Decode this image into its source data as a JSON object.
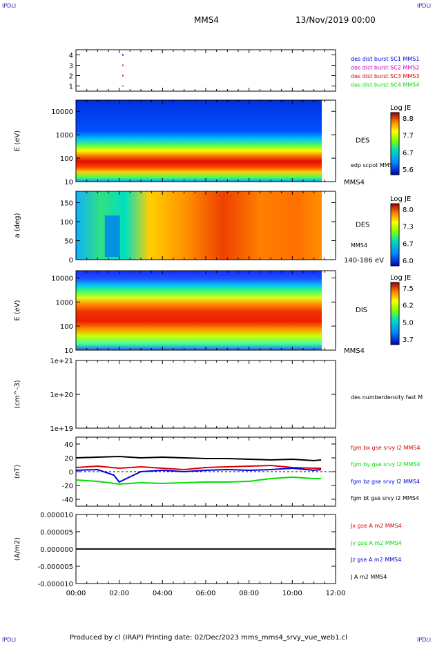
{
  "corner_mark": "IPDLI",
  "header": {
    "spacecraft": "MMS4",
    "datetime": "13/Nov/2019 00:00"
  },
  "footer": {
    "text": "Produced by cl (IRAP)   Printing date: 02/Dec/2023   mms_mms4_srvy_vue_web1.cl"
  },
  "colors": {
    "black": "#000000",
    "blue": "#0000dd",
    "red": "#dd0000",
    "green": "#00dd00",
    "magenta": "#cc00cc"
  },
  "chart_data": [
    {
      "type": "scatter",
      "panel": "burst-flags",
      "ylim": [
        0.5,
        4.5
      ],
      "yticks": [
        "1",
        "2",
        "3",
        "4"
      ],
      "series": [
        {
          "name": "des dist burst SC1 MMS1",
          "color": "#0000dd",
          "level": 4,
          "x": [
            "02:10"
          ]
        },
        {
          "name": "des dist burst SC2 MMS2",
          "color": "#cc00cc",
          "level": 3,
          "x": [
            "02:10"
          ]
        },
        {
          "name": "des dist burst SC3 MMS3",
          "color": "#dd0000",
          "level": 2,
          "x": [
            "02:10"
          ]
        },
        {
          "name": "des dist burst SC4 MMS4",
          "color": "#00dd00",
          "level": 1,
          "x": [
            "02:10"
          ]
        }
      ]
    },
    {
      "type": "heatmap",
      "panel": "des-energy",
      "ylabel": "E (eV)",
      "yscale": "log",
      "ylim": [
        10,
        30000
      ],
      "yticks": [
        "10",
        "100",
        "1000",
        "10000"
      ],
      "label": "DES",
      "sub_label": "edp scpot MMS4",
      "bottom_label": "MMS4",
      "colorbar": {
        "title": "Log JE",
        "ticks": [
          "8.8",
          "7.7",
          "6.7",
          "5.6"
        ]
      }
    },
    {
      "type": "heatmap",
      "panel": "des-pitch",
      "ylabel": "a (deg)",
      "ylim": [
        0,
        180
      ],
      "yticks": [
        "0",
        "50",
        "100",
        "150"
      ],
      "label": "DES",
      "sub_label": "MMS4",
      "bottom_label": "140-186 eV",
      "colorbar": {
        "title": "Log JE",
        "ticks": [
          "8.0",
          "7.3",
          "6.7",
          "6.0"
        ]
      }
    },
    {
      "type": "heatmap",
      "panel": "dis-energy",
      "ylabel": "E (eV)",
      "yscale": "log",
      "ylim": [
        10,
        20000
      ],
      "yticks": [
        "10",
        "100",
        "1000",
        "10000"
      ],
      "label": "DIS",
      "bottom_label": "MMS4",
      "colorbar": {
        "title": "Log JE",
        "ticks": [
          "7.5",
          "6.2",
          "5.0",
          "3.7"
        ]
      }
    },
    {
      "type": "line",
      "panel": "density",
      "ylabel": "(cm^-3)",
      "yscale": "log",
      "ylim": [
        1e+19,
        1e+21
      ],
      "yticks": [
        "1e+19",
        "1e+20",
        "1e+21"
      ],
      "series": [
        {
          "name": "des numberdensity fast M",
          "color": "#000000",
          "x": [],
          "y": []
        }
      ]
    },
    {
      "type": "line",
      "panel": "fgm",
      "ylabel": "(nT)",
      "ylim": [
        -50,
        50
      ],
      "yticks": [
        "-40",
        "-20",
        "0",
        "20",
        "40"
      ],
      "series": [
        {
          "name": "fgm bx gse srvy l2 MMS4",
          "color": "#dd0000",
          "x": [
            "00:00",
            "01:00",
            "02:00",
            "03:00",
            "04:00",
            "05:00",
            "06:00",
            "07:00",
            "08:00",
            "09:00",
            "10:00",
            "11:00",
            "11:20"
          ],
          "y": [
            6,
            8,
            5,
            7,
            5,
            3,
            6,
            7,
            8,
            9,
            6,
            5,
            5
          ]
        },
        {
          "name": "fgm by gse srvy l2 MMS4",
          "color": "#00dd00",
          "x": [
            "00:00",
            "01:00",
            "02:00",
            "03:00",
            "04:00",
            "05:00",
            "06:00",
            "07:00",
            "08:00",
            "09:00",
            "10:00",
            "11:00",
            "11:20"
          ],
          "y": [
            -12,
            -14,
            -18,
            -16,
            -17,
            -16,
            -15,
            -15,
            -14,
            -10,
            -8,
            -10,
            -10
          ]
        },
        {
          "name": "fgm bz gse srvy l2 MMS4",
          "color": "#0000dd",
          "x": [
            "00:00",
            "01:00",
            "01:45",
            "02:00",
            "03:00",
            "04:00",
            "05:00",
            "06:00",
            "07:00",
            "08:00",
            "09:00",
            "10:00",
            "11:00",
            "11:20"
          ],
          "y": [
            2,
            3,
            -5,
            -15,
            0,
            2,
            0,
            2,
            3,
            2,
            3,
            5,
            2,
            3
          ]
        },
        {
          "name": "fgm bt gse srvy l2 MMS4",
          "color": "#000000",
          "x": [
            "00:00",
            "01:00",
            "02:00",
            "03:00",
            "04:00",
            "05:00",
            "06:00",
            "07:00",
            "08:00",
            "09:00",
            "10:00",
            "11:00",
            "11:20"
          ],
          "y": [
            20,
            21,
            22,
            20,
            21,
            20,
            19,
            19,
            18,
            17,
            18,
            16,
            17
          ]
        }
      ]
    },
    {
      "type": "line",
      "panel": "current",
      "ylabel": "(A/m2)",
      "ylim": [
        -1e-05,
        1e-05
      ],
      "yticks": [
        "-0.000010",
        "-0.000005",
        "0.000000",
        "0.000005",
        "0.000010"
      ],
      "series": [
        {
          "name": "Jx gse A m2 MMS4",
          "color": "#dd0000",
          "x": [
            "00:00",
            "12:00"
          ],
          "y": [
            0,
            0
          ]
        },
        {
          "name": "Jy gse A m2 MMS4",
          "color": "#00dd00",
          "x": [
            "00:00",
            "12:00"
          ],
          "y": [
            0,
            0
          ]
        },
        {
          "name": "Jz gse A m2 MMS4",
          "color": "#0000dd",
          "x": [
            "00:00",
            "12:00"
          ],
          "y": [
            0,
            0
          ]
        },
        {
          "name": "J A m2 MMS4",
          "color": "#000000",
          "x": [
            "00:00",
            "12:00"
          ],
          "y": [
            0,
            0
          ]
        }
      ]
    }
  ],
  "xaxis": {
    "ticks": [
      "00:00",
      "02:00",
      "04:00",
      "06:00",
      "08:00",
      "10:00",
      "12:00"
    ],
    "range": [
      "00:00",
      "12:00"
    ]
  }
}
